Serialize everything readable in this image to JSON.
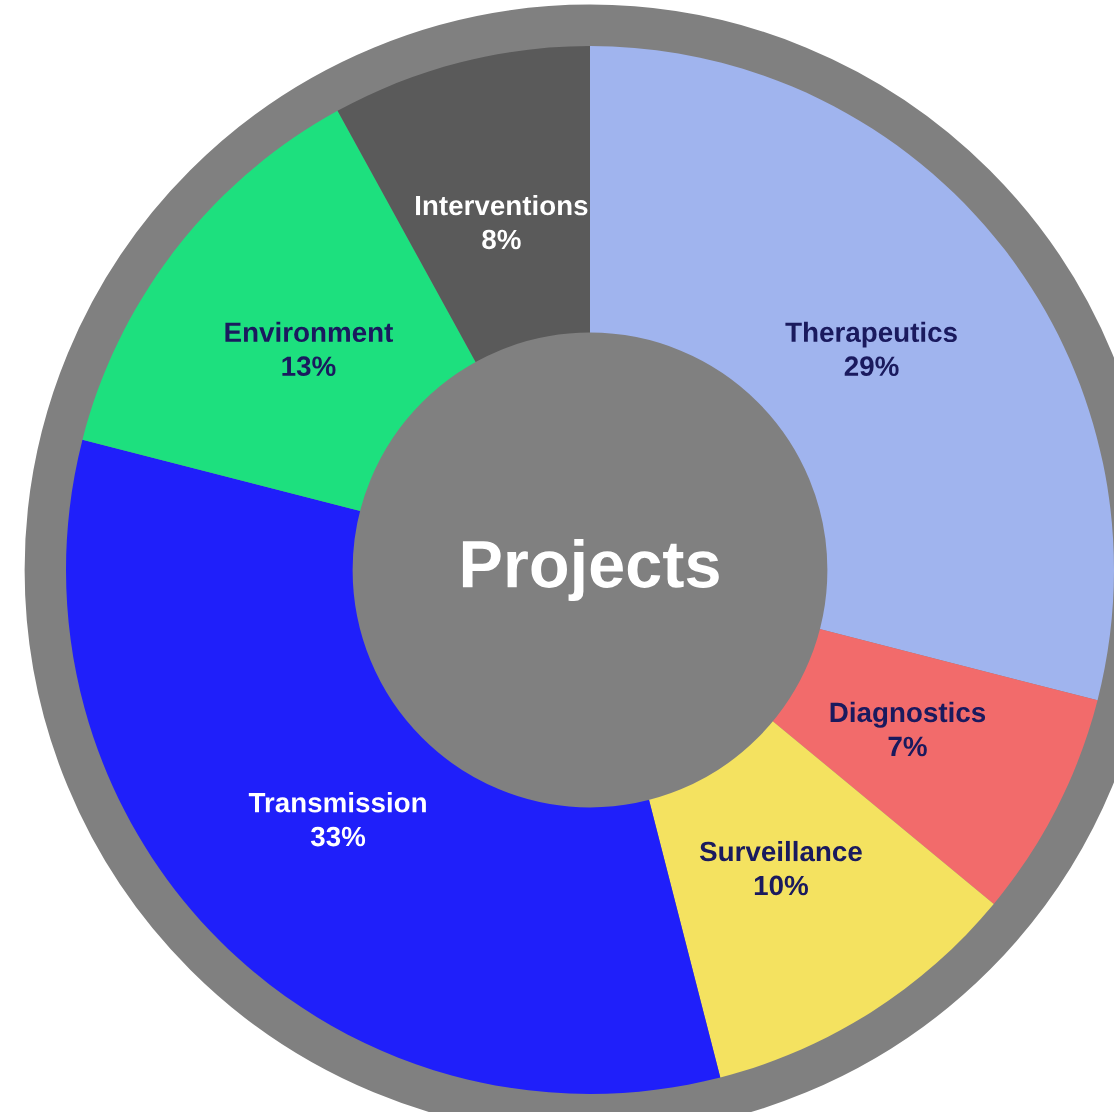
{
  "chart_data": {
    "type": "donut",
    "title": "Projects",
    "categories": [
      "Therapeutics",
      "Diagnostics",
      "Surveillance",
      "Transmission",
      "Environment",
      "Interventions"
    ],
    "values": [
      29,
      7,
      10,
      33,
      13,
      8
    ],
    "value_labels": [
      "29%",
      "7%",
      "10%",
      "33%",
      "13%",
      "8%"
    ],
    "colors": [
      "#a0b4ee",
      "#f26b6b",
      "#f4e260",
      "#1f1ffa",
      "#1de07e",
      "#5a5a5a"
    ]
  }
}
